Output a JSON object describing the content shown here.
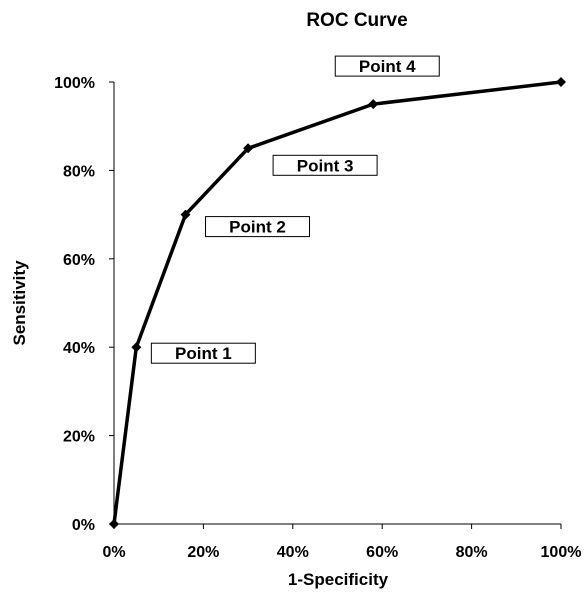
{
  "chart_data": {
    "type": "line",
    "title": "ROC Curve",
    "xlabel": "1-Specificity",
    "ylabel": "Sensitivity",
    "xlim": [
      0,
      1
    ],
    "ylim": [
      0,
      1
    ],
    "x_ticks": [
      0,
      0.2,
      0.4,
      0.6,
      0.8,
      1.0
    ],
    "x_tick_labels": [
      "0%",
      "20%",
      "40%",
      "60%",
      "80%",
      "100%"
    ],
    "y_ticks": [
      0,
      0.2,
      0.4,
      0.6,
      0.8,
      1.0
    ],
    "y_tick_labels": [
      "0%",
      "20%",
      "40%",
      "60%",
      "80%",
      "100%"
    ],
    "grid": false,
    "series": [
      {
        "x": [
          0,
          0.05,
          0.16,
          0.3,
          0.58,
          1.0
        ],
        "y": [
          0,
          0.4,
          0.7,
          0.85,
          0.95,
          1.0
        ]
      }
    ],
    "annotations": [
      {
        "text": "Point 1",
        "x": 0.05,
        "y": 0.4
      },
      {
        "text": "Point 2",
        "x": 0.16,
        "y": 0.7
      },
      {
        "text": "Point 3",
        "x": 0.3,
        "y": 0.85
      },
      {
        "text": "Point 4",
        "x": 0.58,
        "y": 0.95
      }
    ],
    "colors": {
      "line": "#000000",
      "marker": "#000000"
    }
  }
}
